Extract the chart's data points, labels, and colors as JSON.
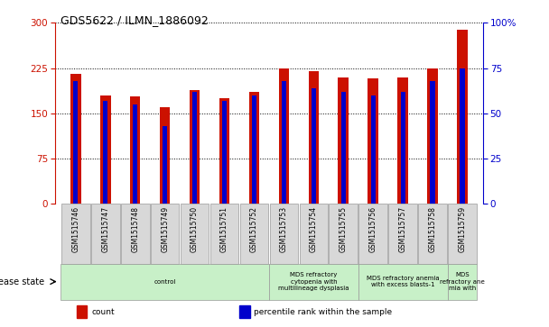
{
  "title": "GDS5622 / ILMN_1886092",
  "samples": [
    "GSM1515746",
    "GSM1515747",
    "GSM1515748",
    "GSM1515749",
    "GSM1515750",
    "GSM1515751",
    "GSM1515752",
    "GSM1515753",
    "GSM1515754",
    "GSM1515755",
    "GSM1515756",
    "GSM1515757",
    "GSM1515758",
    "GSM1515759"
  ],
  "counts": [
    215,
    180,
    178,
    160,
    188,
    175,
    185,
    225,
    220,
    210,
    208,
    210,
    225,
    288
  ],
  "percentile_ranks": [
    68,
    57,
    55,
    43,
    62,
    57,
    60,
    68,
    64,
    62,
    60,
    62,
    68,
    75
  ],
  "ylim_left": [
    0,
    300
  ],
  "ylim_right": [
    0,
    100
  ],
  "yticks_left": [
    0,
    75,
    150,
    225,
    300
  ],
  "yticks_right": [
    0,
    25,
    50,
    75,
    100
  ],
  "bar_color": "#CC1100",
  "percentile_color": "#0000CC",
  "grid_color": "#888888",
  "bg_color": "#ffffff",
  "group_boundaries": [
    {
      "start": 0,
      "end": 7,
      "label": "control"
    },
    {
      "start": 7,
      "end": 10,
      "label": "MDS refractory\ncytopenia with\nmultilineage dysplasia"
    },
    {
      "start": 10,
      "end": 13,
      "label": "MDS refractory anemia\nwith excess blasts-1"
    },
    {
      "start": 13,
      "end": 14,
      "label": "MDS\nrefractory ane\nmia with"
    }
  ],
  "disease_state_label": "disease state",
  "legend_items": [
    {
      "label": "count",
      "color": "#CC1100"
    },
    {
      "label": "percentile rank within the sample",
      "color": "#0000CC"
    }
  ],
  "tick_label_bg": "#d8d8d8",
  "group_bg": "#c8f0c8"
}
